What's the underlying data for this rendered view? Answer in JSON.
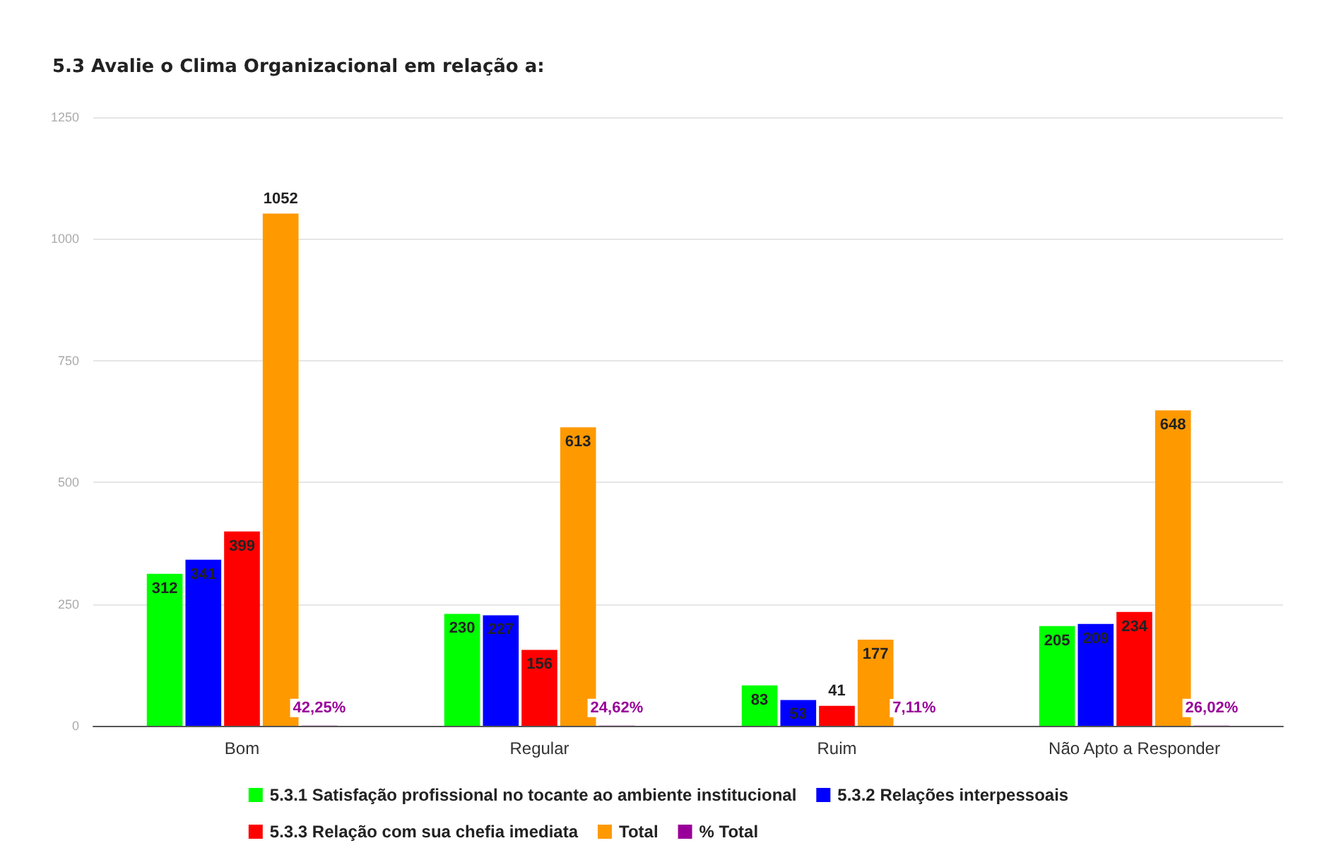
{
  "chart_data": {
    "type": "bar",
    "title": "5.3 Avalie o Clima Organizacional em relação a:",
    "categories": [
      "Bom",
      "Regular",
      "Ruim",
      "Não Apto a Responder"
    ],
    "series": [
      {
        "name": "5.3.1 Satisfação profissional no tocante ao ambiente institucional",
        "color": "#00ff00",
        "values": [
          312,
          230,
          83,
          205
        ],
        "value_labels": [
          "312",
          "230",
          "83",
          "205"
        ]
      },
      {
        "name": "5.3.2 Relações interpessoais",
        "color": "#0000ff",
        "values": [
          341,
          227,
          53,
          209
        ],
        "value_labels": [
          "341",
          "227",
          "53",
          "209"
        ]
      },
      {
        "name": "5.3.3 Relação com sua chefia imediata",
        "color": "#ff0000",
        "values": [
          399,
          156,
          41,
          234
        ],
        "value_labels": [
          "399",
          "156",
          "41",
          "234"
        ]
      },
      {
        "name": "Total",
        "color": "#ff9900",
        "values": [
          1052,
          613,
          177,
          648
        ],
        "value_labels": [
          "1052",
          "613",
          "177",
          "648"
        ]
      },
      {
        "name": "% Total",
        "color": "#990099",
        "values": [
          0.4225,
          0.2462,
          0.0711,
          0.2602
        ],
        "value_labels": [
          "42,25%",
          "24,62%",
          "7,11%",
          "26,02%"
        ]
      }
    ],
    "ylim": [
      0,
      1250
    ],
    "yticks": [
      0,
      250,
      500,
      750,
      1000,
      1250
    ],
    "grid": "y",
    "legend": "bottom"
  }
}
